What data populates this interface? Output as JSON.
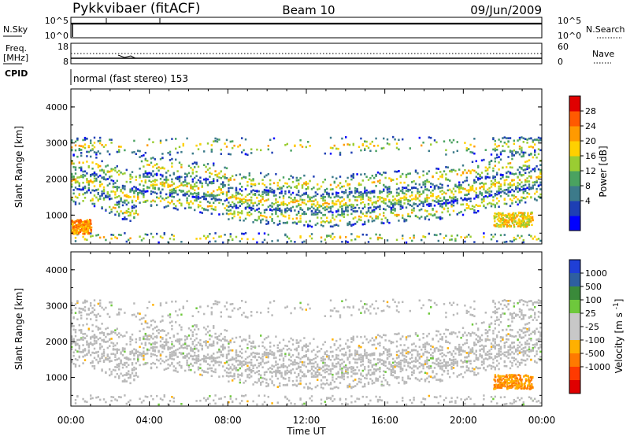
{
  "header": {
    "station": "Pykkvibaer (fitACF)",
    "beam": "Beam 10",
    "date": "09/Jun/2009"
  },
  "top_panels": {
    "nsky_label": "N.Sky",
    "nsky_ticks": [
      "10^5",
      "10^0"
    ],
    "nsearch_label": "N.Search",
    "nsearch_ticks": [
      "10^5",
      "10^0"
    ],
    "freq_label": "Freq.",
    "freq_unit": "[MHz]",
    "freq_ticks": [
      "18",
      "8"
    ],
    "nave_label": "Nave",
    "nave_ticks": [
      "60",
      "0"
    ],
    "cpid_label": "CPID",
    "cpid_text": "normal (fast stereo) 153"
  },
  "colors": {
    "power_scale": [
      "#0000ff",
      "#1e3fb4",
      "#3c7a8a",
      "#4aa260",
      "#9acd32",
      "#ffd000",
      "#ff9a00",
      "#ff5a00",
      "#e00000"
    ],
    "velocity_scale": [
      "#1f3fd6",
      "#2e5fa0",
      "#3a8a3a",
      "#6ec83c",
      "#c8c8c8",
      "#c8c8c8",
      "#ffb000",
      "#ff7a00",
      "#ff3a00",
      "#e00000"
    ],
    "ground_scatter": "#b9b9b9"
  },
  "chart_data": [
    {
      "type": "heatmap",
      "title": "",
      "xlabel": "Time UT",
      "ylabel": "Slant Range [km]",
      "xlim": [
        "00:00",
        "24:00"
      ],
      "ylim": [
        200,
        4500
      ],
      "x_tick_labels": [
        "00:00",
        "04:00",
        "08:00",
        "12:00",
        "16:00",
        "20:00",
        "00:00"
      ],
      "y_tick_labels": [
        "1000",
        "2000",
        "3000",
        "4000"
      ],
      "colorbar": {
        "label": "Power [dB]",
        "ticks": [
          "4",
          "8",
          "12",
          "16",
          "20",
          "24",
          "28"
        ],
        "range": [
          0,
          30
        ]
      },
      "features": [
        {
          "time_start": 0.0,
          "time_end": 1.0,
          "range_start": 500,
          "range_end": 900,
          "power_db": 24
        },
        {
          "time_start": 0.0,
          "time_end": 22.0,
          "range_start": 900,
          "range_end": 2400,
          "power_db": 10
        },
        {
          "time_start": 21.5,
          "time_end": 23.5,
          "range_start": 700,
          "range_end": 1100,
          "power_db": 22
        }
      ]
    },
    {
      "type": "heatmap",
      "title": "",
      "xlabel": "Time UT",
      "ylabel": "Slant Range [km]",
      "xlim": [
        "00:00",
        "24:00"
      ],
      "ylim": [
        200,
        4500
      ],
      "x_tick_labels": [
        "00:00",
        "04:00",
        "08:00",
        "12:00",
        "16:00",
        "20:00",
        "00:00"
      ],
      "y_tick_labels": [
        "1000",
        "2000",
        "3000",
        "4000"
      ],
      "colorbar": {
        "label": "Velocity [m s^-1]",
        "ticks": [
          "1000",
          "500",
          "100",
          "25",
          "-25",
          "-100",
          "-500",
          "-1000"
        ],
        "range": [
          -1000,
          1000
        ]
      },
      "features": [
        {
          "time_start": 0.0,
          "time_end": 24.0,
          "range_start": 900,
          "range_end": 3000,
          "velocity_ms": 0,
          "note": "ground scatter"
        },
        {
          "time_start": 21.5,
          "time_end": 23.5,
          "range_start": 700,
          "range_end": 1100,
          "velocity_ms": -200
        }
      ]
    }
  ]
}
